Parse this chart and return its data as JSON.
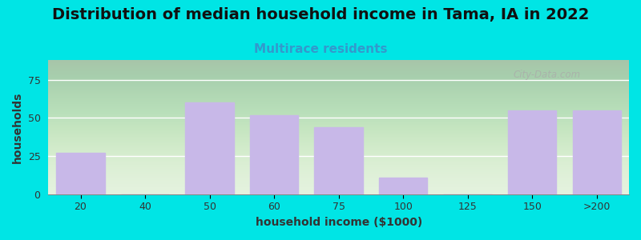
{
  "title": "Distribution of median household income in Tama, IA in 2022",
  "subtitle": "Multirace residents",
  "xlabel": "household income ($1000)",
  "ylabel": "households",
  "categories": [
    "20",
    "40",
    "50",
    "60",
    "75",
    "100",
    "125",
    "150",
    ">200"
  ],
  "values": [
    27,
    0,
    60,
    52,
    44,
    11,
    0,
    55,
    55
  ],
  "bar_color": "#c8b8e8",
  "bg_color": "#00e5e5",
  "ylim": [
    0,
    88
  ],
  "yticks": [
    0,
    25,
    50,
    75
  ],
  "title_fontsize": 14,
  "subtitle_fontsize": 11,
  "axis_label_fontsize": 10,
  "tick_fontsize": 9,
  "watermark": "City-Data.com"
}
